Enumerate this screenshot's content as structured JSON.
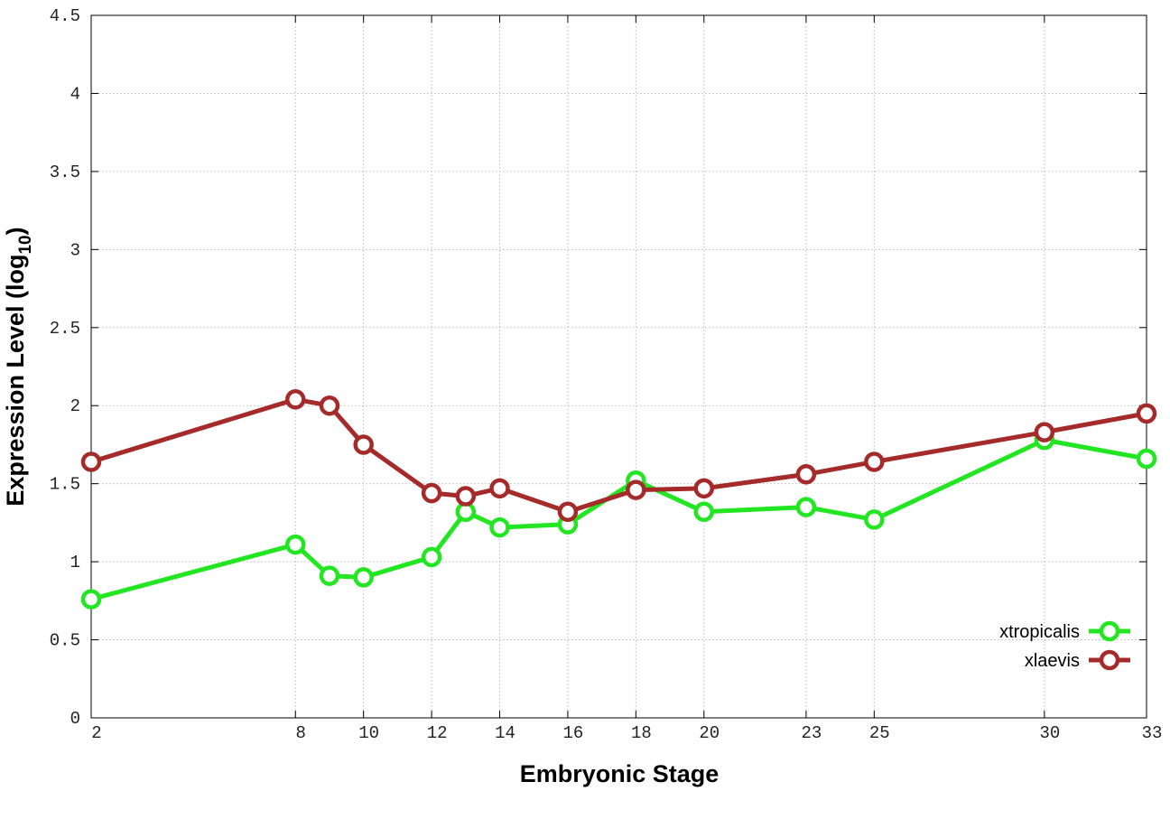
{
  "chart_data": {
    "type": "line",
    "x_label": "Embryonic Stage",
    "y_label": {
      "text": "Expression Level (log",
      "subscript": "10",
      "suffix": ")"
    },
    "x": [
      2,
      8,
      9,
      10,
      12,
      13,
      14,
      16,
      18,
      20,
      23,
      25,
      30,
      33
    ],
    "series": [
      {
        "name": "xtropicalis",
        "color": "#22e622",
        "values": [
          0.76,
          1.11,
          0.91,
          0.9,
          1.03,
          1.32,
          1.22,
          1.24,
          1.52,
          1.32,
          1.35,
          1.27,
          1.78,
          1.66
        ]
      },
      {
        "name": "xlaevis",
        "color": "#a52a2a",
        "values": [
          1.64,
          2.04,
          2.0,
          1.75,
          1.44,
          1.42,
          1.47,
          1.32,
          1.46,
          1.47,
          1.56,
          1.64,
          1.83,
          1.95
        ]
      }
    ],
    "xlim": [
      2,
      33
    ],
    "xticks": [
      2,
      8,
      10,
      12,
      14,
      16,
      18,
      20,
      23,
      25,
      30,
      33
    ],
    "ylim": [
      0,
      4.5
    ],
    "yticks": [
      0,
      0.5,
      1,
      1.5,
      2,
      2.5,
      3,
      3.5,
      4,
      4.5
    ],
    "grid": true,
    "legend": "lower-right"
  }
}
